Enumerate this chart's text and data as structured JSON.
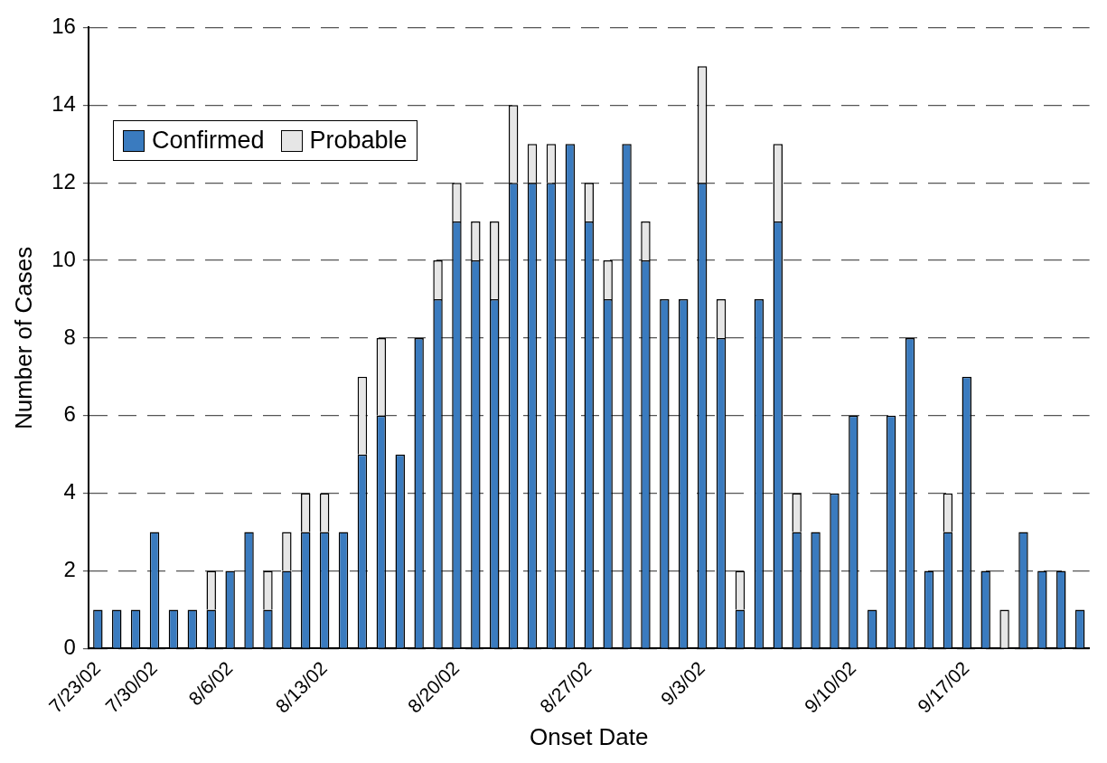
{
  "chart_data": {
    "type": "bar",
    "stacked": true,
    "xlabel": "Onset Date",
    "ylabel": "Number of Cases",
    "categories": [
      "7/23/02",
      null,
      null,
      "7/30/02",
      null,
      null,
      null,
      "8/6/02",
      null,
      null,
      null,
      null,
      "8/13/02",
      null,
      null,
      null,
      null,
      null,
      null,
      "8/20/02",
      null,
      null,
      null,
      null,
      null,
      null,
      "8/27/02",
      null,
      null,
      null,
      null,
      null,
      "9/3/02",
      null,
      null,
      null,
      null,
      null,
      null,
      null,
      "9/10/02",
      null,
      null,
      null,
      null,
      null,
      "9/17/02",
      null,
      null,
      null,
      null,
      null,
      null
    ],
    "series": [
      {
        "name": "Confirmed",
        "color": "#3a7bbf",
        "values": [
          1,
          1,
          1,
          3,
          1,
          1,
          1,
          2,
          3,
          1,
          2,
          3,
          3,
          3,
          5,
          6,
          5,
          8,
          9,
          11,
          10,
          9,
          12,
          12,
          12,
          13,
          11,
          9,
          13,
          10,
          9,
          9,
          12,
          8,
          1,
          9,
          11,
          3,
          3,
          4,
          6,
          1,
          6,
          8,
          2,
          3,
          7,
          2,
          0,
          3,
          2,
          2,
          1
        ]
      },
      {
        "name": "Probable",
        "color": "#e6e6e6",
        "values": [
          0,
          0,
          0,
          0,
          0,
          0,
          1,
          0,
          0,
          1,
          1,
          1,
          1,
          0,
          2,
          2,
          0,
          0,
          1,
          1,
          1,
          2,
          2,
          1,
          1,
          0,
          1,
          1,
          0,
          1,
          0,
          0,
          3,
          1,
          1,
          0,
          2,
          1,
          0,
          0,
          0,
          0,
          0,
          0,
          0,
          1,
          0,
          0,
          1,
          0,
          0,
          0,
          0
        ]
      }
    ],
    "ylim": [
      0,
      16
    ],
    "yticks": [
      0,
      2,
      4,
      6,
      8,
      10,
      12,
      14,
      16
    ],
    "grid": "y",
    "legend": "top left"
  }
}
